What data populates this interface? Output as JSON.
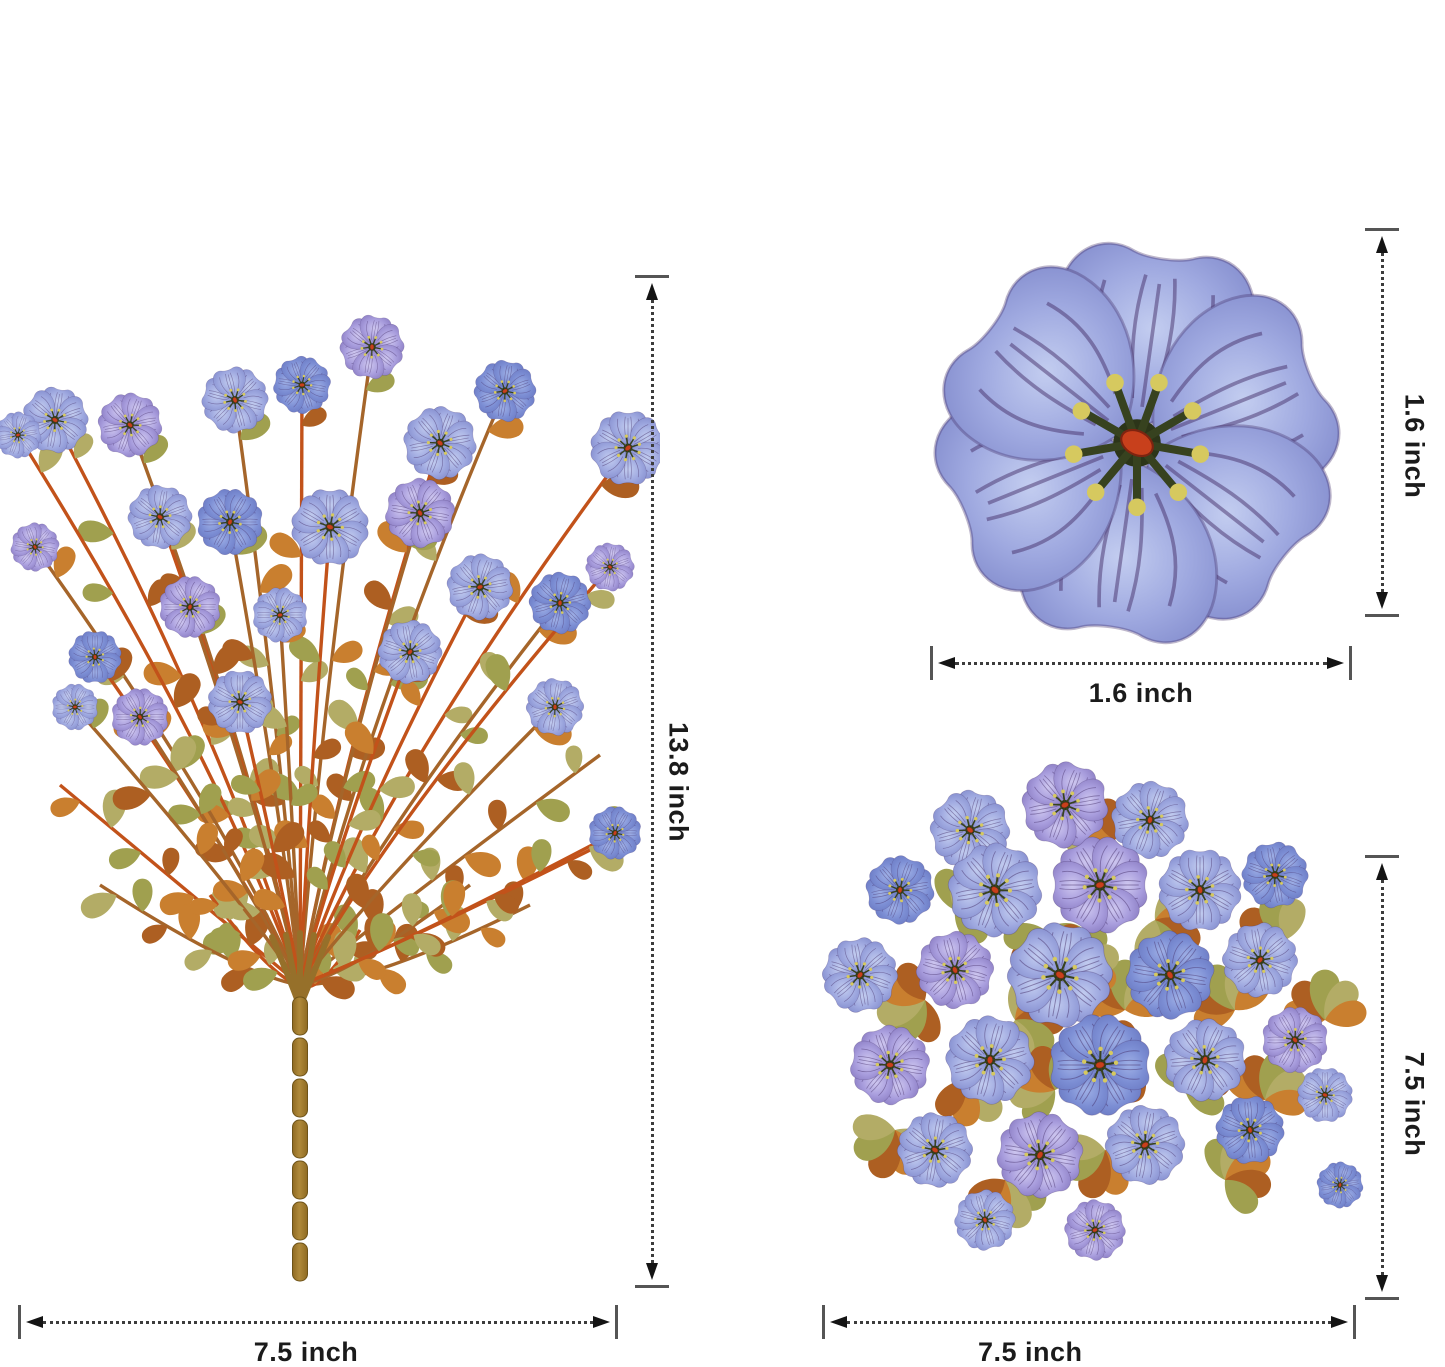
{
  "dimensions": {
    "bouquet_height_label": "13.8 inch",
    "bouquet_width_label": "7.5 inch",
    "flower_height_label": "1.6 inch",
    "flower_width_label": "1.6 inch",
    "top_view_height_label": "7.5 inch",
    "top_view_width_label": "7.5 inch"
  },
  "colors": {
    "background": "#ffffff",
    "dim_dot": "#3c3c3c",
    "dim_cap": "#555555",
    "dim_arrow": "#141414",
    "label_text": "#1b1b1b",
    "petal_blue_light": "#c3cdf0",
    "petal_blue": "#9fa9e0",
    "petal_blue_deep": "#7b84c8",
    "petal_violet_light": "#cfc8f0",
    "petal_violet": "#a89ddd",
    "petal_violet_deep": "#8172ba",
    "petal_navy_light": "#9fb0e6",
    "petal_navy": "#7c8ed4",
    "petal_navy_deep": "#6674be",
    "vein": "#46306a",
    "flower_center_red": "#c8401c",
    "flower_center_dark": "#2c3519",
    "stamen": "#37421f",
    "stamen_tip": "#d6c95f",
    "leaf_olive": "#a0a04f",
    "leaf_sage": "#b3ac66",
    "leaf_orange": "#c97f2f",
    "leaf_rust": "#ad5f22",
    "stem_brown": "#a5652a",
    "stem_red": "#c2521a",
    "stalk_light": "#b08a3a",
    "stalk_dark": "#8f6a22",
    "stalk_edge": "#6e5318",
    "bundle": "#96702a"
  }
}
